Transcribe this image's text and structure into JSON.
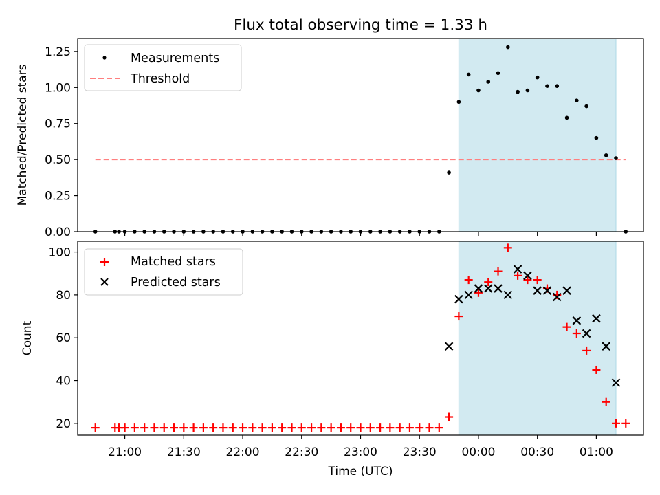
{
  "chart_data": [
    {
      "type": "scatter",
      "title": "Flux total observing time = 1.33 h",
      "xlabel": "",
      "ylabel": "Matched/Predicted stars",
      "ylim": [
        0,
        1.34
      ],
      "yticks": [
        "0.00",
        "0.25",
        "0.50",
        "0.75",
        "1.00",
        "1.25"
      ],
      "legend_position": "upper-left",
      "legend": [
        {
          "label": "Measurements",
          "marker": "dot",
          "color": "#000000"
        },
        {
          "label": "Threshold",
          "marker": "dashed-line",
          "color": "#ff7f7f"
        }
      ],
      "threshold": {
        "value": 0.5,
        "x_start": "20:45",
        "x_end": "01:15",
        "color": "#ff7f7f",
        "style": "dashed"
      },
      "shaded_region": {
        "x_start": "23:50",
        "x_end": "01:10",
        "color": "#add8e6"
      },
      "series": [
        {
          "name": "Measurements",
          "color": "#000000",
          "points": [
            [
              "20:45",
              0.0
            ],
            [
              "20:55",
              0.0
            ],
            [
              "20:57",
              0.0
            ],
            [
              "21:00",
              0.0
            ],
            [
              "21:05",
              0.0
            ],
            [
              "21:10",
              0.0
            ],
            [
              "21:15",
              0.0
            ],
            [
              "21:20",
              0.0
            ],
            [
              "21:25",
              0.0
            ],
            [
              "21:30",
              0.0
            ],
            [
              "21:35",
              0.0
            ],
            [
              "21:40",
              0.0
            ],
            [
              "21:45",
              0.0
            ],
            [
              "21:50",
              0.0
            ],
            [
              "21:55",
              0.0
            ],
            [
              "22:00",
              0.0
            ],
            [
              "22:05",
              0.0
            ],
            [
              "22:10",
              0.0
            ],
            [
              "22:15",
              0.0
            ],
            [
              "22:20",
              0.0
            ],
            [
              "22:25",
              0.0
            ],
            [
              "22:30",
              0.0
            ],
            [
              "22:35",
              0.0
            ],
            [
              "22:40",
              0.0
            ],
            [
              "22:45",
              0.0
            ],
            [
              "22:50",
              0.0
            ],
            [
              "22:55",
              0.0
            ],
            [
              "23:00",
              0.0
            ],
            [
              "23:05",
              0.0
            ],
            [
              "23:10",
              0.0
            ],
            [
              "23:15",
              0.0
            ],
            [
              "23:20",
              0.0
            ],
            [
              "23:25",
              0.0
            ],
            [
              "23:30",
              0.0
            ],
            [
              "23:35",
              0.0
            ],
            [
              "23:40",
              0.0
            ],
            [
              "23:45",
              0.41
            ],
            [
              "23:50",
              0.9
            ],
            [
              "23:55",
              1.09
            ],
            [
              "00:00",
              0.98
            ],
            [
              "00:05",
              1.04
            ],
            [
              "00:10",
              1.1
            ],
            [
              "00:15",
              1.28
            ],
            [
              "00:20",
              0.97
            ],
            [
              "00:25",
              0.98
            ],
            [
              "00:30",
              1.07
            ],
            [
              "00:35",
              1.01
            ],
            [
              "00:40",
              1.01
            ],
            [
              "00:45",
              0.79
            ],
            [
              "00:50",
              0.91
            ],
            [
              "00:55",
              0.87
            ],
            [
              "01:00",
              0.65
            ],
            [
              "01:05",
              0.53
            ],
            [
              "01:10",
              0.51
            ],
            [
              "01:15",
              0.0
            ]
          ]
        }
      ]
    },
    {
      "type": "scatter",
      "title": "",
      "xlabel": "Time (UTC)",
      "ylabel": "Count",
      "ylim": [
        14.5,
        105
      ],
      "yticks": [
        "20",
        "40",
        "60",
        "80",
        "100"
      ],
      "xticks": [
        "21:00",
        "21:30",
        "22:00",
        "22:30",
        "23:00",
        "23:30",
        "00:00",
        "00:30",
        "01:00"
      ],
      "legend_position": "upper-left",
      "legend": [
        {
          "label": "Matched stars",
          "marker": "plus",
          "color": "#ff0000"
        },
        {
          "label": "Predicted stars",
          "marker": "x",
          "color": "#000000"
        }
      ],
      "shaded_region": {
        "x_start": "23:50",
        "x_end": "01:10",
        "color": "#add8e6"
      },
      "series": [
        {
          "name": "Matched stars",
          "marker": "plus",
          "color": "#ff0000",
          "points": [
            [
              "20:45",
              18
            ],
            [
              "20:55",
              18
            ],
            [
              "20:57",
              18
            ],
            [
              "21:00",
              18
            ],
            [
              "21:05",
              18
            ],
            [
              "21:10",
              18
            ],
            [
              "21:15",
              18
            ],
            [
              "21:20",
              18
            ],
            [
              "21:25",
              18
            ],
            [
              "21:30",
              18
            ],
            [
              "21:35",
              18
            ],
            [
              "21:40",
              18
            ],
            [
              "21:45",
              18
            ],
            [
              "21:50",
              18
            ],
            [
              "21:55",
              18
            ],
            [
              "22:00",
              18
            ],
            [
              "22:05",
              18
            ],
            [
              "22:10",
              18
            ],
            [
              "22:15",
              18
            ],
            [
              "22:20",
              18
            ],
            [
              "22:25",
              18
            ],
            [
              "22:30",
              18
            ],
            [
              "22:35",
              18
            ],
            [
              "22:40",
              18
            ],
            [
              "22:45",
              18
            ],
            [
              "22:50",
              18
            ],
            [
              "22:55",
              18
            ],
            [
              "23:00",
              18
            ],
            [
              "23:05",
              18
            ],
            [
              "23:10",
              18
            ],
            [
              "23:15",
              18
            ],
            [
              "23:20",
              18
            ],
            [
              "23:25",
              18
            ],
            [
              "23:30",
              18
            ],
            [
              "23:35",
              18
            ],
            [
              "23:40",
              18
            ],
            [
              "23:45",
              23
            ],
            [
              "23:50",
              70
            ],
            [
              "23:55",
              87
            ],
            [
              "00:00",
              81
            ],
            [
              "00:05",
              86
            ],
            [
              "00:10",
              91
            ],
            [
              "00:15",
              102
            ],
            [
              "00:20",
              89
            ],
            [
              "00:25",
              87
            ],
            [
              "00:30",
              87
            ],
            [
              "00:35",
              83
            ],
            [
              "00:40",
              80
            ],
            [
              "00:45",
              65
            ],
            [
              "00:50",
              62
            ],
            [
              "00:55",
              54
            ],
            [
              "01:00",
              45
            ],
            [
              "01:05",
              30
            ],
            [
              "01:10",
              20
            ],
            [
              "01:15",
              20
            ]
          ]
        },
        {
          "name": "Predicted stars",
          "marker": "x",
          "color": "#000000",
          "points": [
            [
              "23:45",
              56
            ],
            [
              "23:50",
              78
            ],
            [
              "23:55",
              80
            ],
            [
              "00:00",
              83
            ],
            [
              "00:05",
              83
            ],
            [
              "00:10",
              83
            ],
            [
              "00:15",
              80
            ],
            [
              "00:20",
              92
            ],
            [
              "00:25",
              89
            ],
            [
              "00:30",
              82
            ],
            [
              "00:35",
              82
            ],
            [
              "00:40",
              79
            ],
            [
              "00:45",
              82
            ],
            [
              "00:50",
              68
            ],
            [
              "00:55",
              62
            ],
            [
              "01:00",
              69
            ],
            [
              "01:05",
              56
            ],
            [
              "01:10",
              39
            ]
          ]
        }
      ]
    }
  ]
}
